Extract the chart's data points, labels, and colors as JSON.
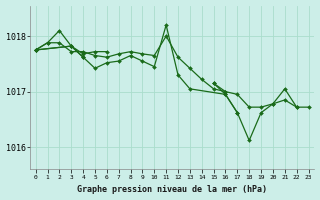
{
  "background_color": "#cceee8",
  "grid_color": "#aaddcc",
  "line_color": "#1a6b1a",
  "xlabel": "Graphe pression niveau de la mer (hPa)",
  "ylim": [
    1015.6,
    1018.55
  ],
  "xlim": [
    -0.5,
    23.5
  ],
  "yticks": [
    1016,
    1017,
    1018
  ],
  "xtick_labels": [
    "0",
    "1",
    "2",
    "3",
    "4",
    "5",
    "6",
    "7",
    "8",
    "9",
    "10",
    "11",
    "12",
    "13",
    "14",
    "15",
    "16",
    "17",
    "18",
    "19",
    "20",
    "21",
    "22",
    "23"
  ],
  "series1": {
    "x": [
      0,
      1,
      2,
      3,
      4,
      5,
      6,
      7,
      8,
      9,
      10,
      11,
      12,
      13,
      14,
      15,
      16,
      17,
      18,
      19,
      20,
      21,
      22,
      23
    ],
    "y": [
      1017.75,
      1017.88,
      1017.88,
      1017.72,
      1017.72,
      1017.65,
      1017.62,
      1017.68,
      1017.72,
      1017.68,
      1017.65,
      1018.0,
      1017.62,
      1017.42,
      1017.22,
      1017.05,
      1017.0,
      1016.95,
      1016.72,
      1016.72,
      1016.78,
      1016.85,
      1016.72,
      1016.72
    ]
  },
  "series2": {
    "segments": [
      {
        "x": [
          0,
          1,
          2,
          3,
          4,
          5,
          6
        ],
        "y": [
          1017.75,
          1017.88,
          1018.1,
          1017.82,
          1017.68,
          1017.72,
          1017.72
        ]
      },
      {
        "x": [
          15,
          16
        ],
        "y": [
          1017.15,
          1017.0
        ]
      }
    ]
  },
  "series3": {
    "x": [
      0,
      3,
      4,
      5,
      6,
      7,
      8,
      9,
      10,
      11,
      12,
      13,
      16,
      17,
      18,
      19,
      20,
      21,
      22
    ],
    "y": [
      1017.75,
      1017.82,
      1017.62,
      1017.42,
      1017.52,
      1017.55,
      1017.65,
      1017.55,
      1017.45,
      1018.2,
      1017.3,
      1017.05,
      1016.95,
      1016.62,
      1016.12,
      1016.62,
      1016.78,
      1017.05,
      1016.72
    ]
  },
  "series4": {
    "segments": [
      {
        "x": [
          0,
          3,
          4
        ],
        "y": [
          1017.75,
          1017.82,
          1017.62
        ]
      },
      {
        "x": [
          15,
          16,
          17
        ],
        "y": [
          1017.15,
          1016.95,
          1016.62
        ]
      }
    ]
  }
}
